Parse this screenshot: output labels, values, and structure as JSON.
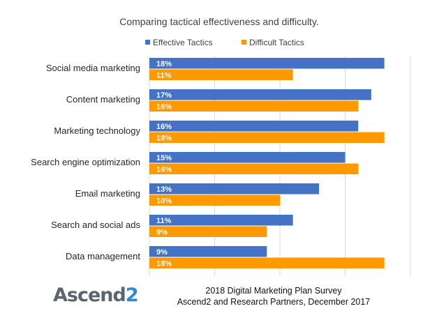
{
  "chart_data": {
    "type": "bar",
    "orientation": "horizontal",
    "title": "Comparing tactical effectiveness and difficulty.",
    "categories": [
      "Social media marketing",
      "Content marketing",
      "Marketing technology",
      "Search engine optimization",
      "Email marketing",
      "Search and social ads",
      "Data management"
    ],
    "series": [
      {
        "name": "Effective Tactics",
        "color": "#4472c4",
        "values": [
          18,
          17,
          16,
          15,
          13,
          11,
          9
        ],
        "labels": [
          "18%",
          "17%",
          "16%",
          "15%",
          "13%",
          "11%",
          "9%"
        ]
      },
      {
        "name": "Difficult Tactics",
        "color": "#ff9900",
        "values": [
          11,
          16,
          18,
          16,
          10,
          9,
          18
        ],
        "labels": [
          "11%",
          "16%",
          "18%",
          "16%",
          "10%",
          "9%",
          "18%"
        ]
      }
    ],
    "xlim": [
      0,
      20
    ],
    "grid": true,
    "legend": "top"
  },
  "footer": {
    "logo_text": "Ascend",
    "logo_mark": "2",
    "source_line1": "2018 Digital Marketing Plan Survey",
    "source_line2": "Ascend2 and Research Partners, December 2017"
  }
}
